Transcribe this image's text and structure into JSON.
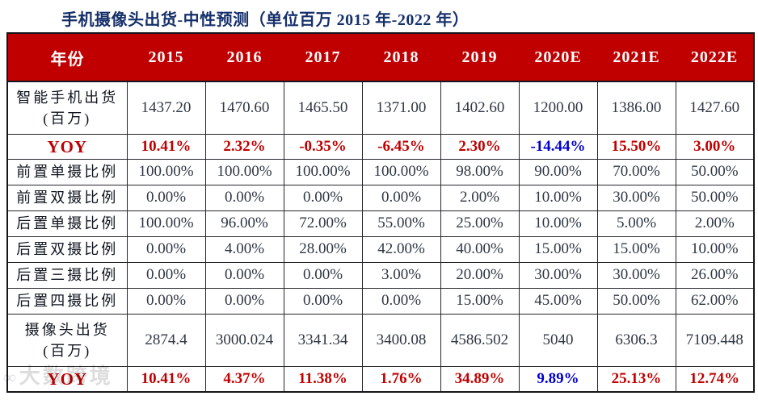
{
  "title": "手机摄像头出货-中性预测（单位百万 2015 年-2022 年）",
  "palette": {
    "header_bg": "#C00000",
    "header_fg": "#FFFFFF",
    "title_color": "#16306B",
    "label_color": "#10151F",
    "num_color": "#2F3744",
    "yoy_red": "#C00000",
    "yoy_blue": "#0000CC"
  },
  "watermark": {
    "logo": "∞",
    "text": "大数跨境"
  },
  "chart_data": {
    "type": "table",
    "title": "手机摄像头出货-中性预测（单位百万 2015 年-2022 年）",
    "columns": [
      "年份",
      "2015",
      "2016",
      "2017",
      "2018",
      "2019",
      "2020E",
      "2021E",
      "2022E"
    ],
    "rows": [
      {
        "label_lines": [
          "智能手机出货",
          "(百万)"
        ],
        "type": "num",
        "values": [
          "1437.20",
          "1470.60",
          "1465.50",
          "1371.00",
          "1402.60",
          "1200.00",
          "1386.00",
          "1427.60"
        ]
      },
      {
        "label_lines": [
          "YOY"
        ],
        "type": "yoy",
        "values": [
          "10.41%",
          "2.32%",
          "-0.35%",
          "-6.45%",
          "2.30%",
          "-14.44%",
          "15.50%",
          "3.00%"
        ],
        "blue_indices": [
          5
        ]
      },
      {
        "label_lines": [
          "前置单摄比例"
        ],
        "type": "num",
        "values": [
          "100.00%",
          "100.00%",
          "100.00%",
          "100.00%",
          "98.00%",
          "90.00%",
          "70.00%",
          "50.00%"
        ]
      },
      {
        "label_lines": [
          "前置双摄比例"
        ],
        "type": "num",
        "values": [
          "0.00%",
          "0.00%",
          "0.00%",
          "0.00%",
          "2.00%",
          "10.00%",
          "30.00%",
          "50.00%"
        ]
      },
      {
        "label_lines": [
          "后置单摄比例"
        ],
        "type": "num",
        "values": [
          "100.00%",
          "96.00%",
          "72.00%",
          "55.00%",
          "25.00%",
          "10.00%",
          "5.00%",
          "2.00%"
        ]
      },
      {
        "label_lines": [
          "后置双摄比例"
        ],
        "type": "num",
        "values": [
          "0.00%",
          "4.00%",
          "28.00%",
          "42.00%",
          "40.00%",
          "15.00%",
          "15.00%",
          "10.00%"
        ]
      },
      {
        "label_lines": [
          "后置三摄比例"
        ],
        "type": "num",
        "values": [
          "0.00%",
          "0.00%",
          "0.00%",
          "3.00%",
          "20.00%",
          "30.00%",
          "30.00%",
          "26.00%"
        ]
      },
      {
        "label_lines": [
          "后置四摄比例"
        ],
        "type": "num",
        "values": [
          "0.00%",
          "0.00%",
          "0.00%",
          "0.00%",
          "15.00%",
          "45.00%",
          "50.00%",
          "62.00%"
        ]
      },
      {
        "label_lines": [
          "摄像头出货",
          "(百万)"
        ],
        "type": "num",
        "values": [
          "2874.4",
          "3000.024",
          "3341.34",
          "3400.08",
          "4586.502",
          "5040",
          "6306.3",
          "7109.448"
        ]
      },
      {
        "label_lines": [
          "YOY"
        ],
        "type": "yoy",
        "values": [
          "10.41%",
          "4.37%",
          "11.38%",
          "1.76%",
          "34.89%",
          "9.89%",
          "25.13%",
          "12.74%"
        ],
        "blue_indices": [
          5
        ]
      }
    ]
  }
}
